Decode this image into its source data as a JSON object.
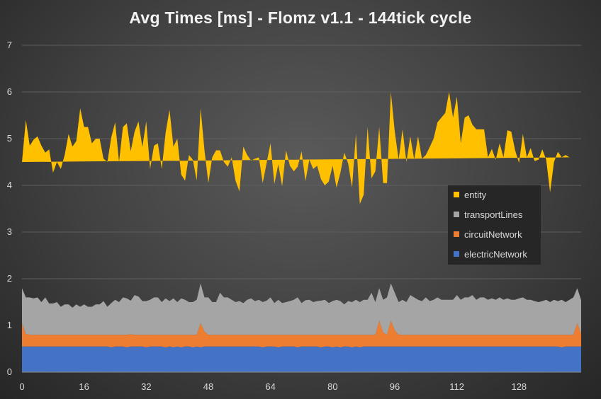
{
  "chart_data": {
    "type": "area",
    "stacked": true,
    "title": "Avg Times [ms] - Flomz v1.1 - 144tick cycle",
    "xlabel": "",
    "ylabel": "",
    "xlim": [
      0,
      144
    ],
    "ylim": [
      0,
      7
    ],
    "x_ticks": [
      "0",
      "16",
      "32",
      "48",
      "64",
      "80",
      "96",
      "112",
      "128"
    ],
    "y_ticks": [
      "0",
      "1",
      "2",
      "3",
      "4",
      "5",
      "6",
      "7"
    ],
    "grid": "horizontal",
    "legend_position": "right",
    "series": [
      {
        "name": "electricNetwork",
        "color": "#4472c4",
        "values": [
          0.55,
          0.55,
          0.55,
          0.55,
          0.55,
          0.55,
          0.55,
          0.55,
          0.55,
          0.55,
          0.55,
          0.55,
          0.55,
          0.55,
          0.55,
          0.55,
          0.55,
          0.55,
          0.55,
          0.55,
          0.55,
          0.55,
          0.55,
          0.53,
          0.55,
          0.55,
          0.55,
          0.53,
          0.55,
          0.55,
          0.55,
          0.55,
          0.53,
          0.55,
          0.55,
          0.55,
          0.55,
          0.53,
          0.55,
          0.53,
          0.55,
          0.53,
          0.55,
          0.55,
          0.53,
          0.55,
          0.53,
          0.55,
          0.55,
          0.55,
          0.55,
          0.55,
          0.55,
          0.55,
          0.55,
          0.55,
          0.55,
          0.55,
          0.55,
          0.55,
          0.55,
          0.55,
          0.53,
          0.55,
          0.55,
          0.55,
          0.53,
          0.55,
          0.55,
          0.55,
          0.55,
          0.53,
          0.55,
          0.55,
          0.55,
          0.55,
          0.55,
          0.53,
          0.55,
          0.55,
          0.53,
          0.55,
          0.53,
          0.55,
          0.55,
          0.53,
          0.55,
          0.53,
          0.55,
          0.55,
          0.55,
          0.55,
          0.55,
          0.55,
          0.55,
          0.55,
          0.55,
          0.55,
          0.55,
          0.55,
          0.55,
          0.55,
          0.55,
          0.55,
          0.55,
          0.55,
          0.55,
          0.55,
          0.55,
          0.55,
          0.55,
          0.55,
          0.55,
          0.55,
          0.55,
          0.55,
          0.55,
          0.55,
          0.55,
          0.55,
          0.55,
          0.55,
          0.55,
          0.55,
          0.55,
          0.55,
          0.55,
          0.55,
          0.55,
          0.55,
          0.55,
          0.55,
          0.55,
          0.55,
          0.55,
          0.55,
          0.55,
          0.55,
          0.55,
          0.53,
          0.55,
          0.55,
          0.55,
          0.55,
          0.55
        ]
      },
      {
        "name": "circuitNetwork",
        "color": "#ed7d31",
        "values": [
          0.5,
          0.27,
          0.25,
          0.25,
          0.25,
          0.25,
          0.25,
          0.25,
          0.25,
          0.25,
          0.25,
          0.25,
          0.25,
          0.25,
          0.25,
          0.25,
          0.25,
          0.25,
          0.25,
          0.25,
          0.25,
          0.25,
          0.25,
          0.27,
          0.25,
          0.25,
          0.25,
          0.27,
          0.26,
          0.25,
          0.25,
          0.25,
          0.27,
          0.25,
          0.25,
          0.25,
          0.25,
          0.27,
          0.25,
          0.27,
          0.25,
          0.27,
          0.25,
          0.25,
          0.27,
          0.25,
          0.52,
          0.32,
          0.25,
          0.25,
          0.25,
          0.25,
          0.25,
          0.25,
          0.25,
          0.25,
          0.25,
          0.25,
          0.25,
          0.25,
          0.25,
          0.25,
          0.27,
          0.25,
          0.25,
          0.25,
          0.27,
          0.25,
          0.25,
          0.25,
          0.25,
          0.27,
          0.25,
          0.25,
          0.25,
          0.25,
          0.25,
          0.27,
          0.25,
          0.25,
          0.27,
          0.25,
          0.27,
          0.25,
          0.25,
          0.27,
          0.25,
          0.27,
          0.25,
          0.25,
          0.25,
          0.25,
          0.55,
          0.3,
          0.25,
          0.55,
          0.35,
          0.25,
          0.25,
          0.25,
          0.25,
          0.25,
          0.25,
          0.25,
          0.25,
          0.25,
          0.25,
          0.25,
          0.25,
          0.25,
          0.25,
          0.25,
          0.25,
          0.25,
          0.25,
          0.25,
          0.25,
          0.25,
          0.25,
          0.25,
          0.25,
          0.25,
          0.25,
          0.25,
          0.25,
          0.25,
          0.25,
          0.25,
          0.25,
          0.25,
          0.25,
          0.25,
          0.25,
          0.25,
          0.25,
          0.25,
          0.25,
          0.25,
          0.25,
          0.27,
          0.25,
          0.25,
          0.25,
          0.5,
          0.27
        ]
      },
      {
        "name": "transportLines",
        "color": "#a5a5a5",
        "values": [
          0.75,
          0.78,
          0.8,
          0.78,
          0.8,
          0.7,
          0.8,
          0.67,
          0.67,
          0.7,
          0.6,
          0.65,
          0.65,
          0.58,
          0.65,
          0.6,
          0.65,
          0.6,
          0.6,
          0.65,
          0.65,
          0.72,
          0.6,
          0.68,
          0.75,
          0.7,
          0.8,
          0.78,
          0.72,
          0.85,
          0.82,
          0.72,
          0.72,
          0.75,
          0.8,
          0.8,
          0.7,
          0.78,
          0.72,
          0.78,
          0.7,
          0.78,
          0.75,
          0.7,
          0.7,
          0.75,
          0.85,
          0.73,
          0.8,
          0.7,
          0.7,
          0.9,
          0.8,
          0.8,
          0.75,
          0.7,
          0.72,
          0.68,
          0.75,
          0.78,
          0.72,
          0.75,
          0.7,
          0.73,
          0.8,
          0.68,
          0.75,
          0.68,
          0.7,
          0.72,
          0.75,
          0.8,
          0.68,
          0.74,
          0.75,
          0.7,
          0.72,
          0.73,
          0.75,
          0.68,
          0.72,
          0.75,
          0.72,
          0.65,
          0.72,
          0.7,
          0.75,
          0.7,
          0.75,
          0.75,
          0.9,
          0.7,
          0.7,
          0.7,
          0.8,
          0.8,
          0.8,
          0.7,
          0.75,
          0.7,
          0.85,
          0.8,
          0.75,
          0.72,
          0.8,
          0.72,
          0.75,
          0.8,
          0.75,
          0.75,
          0.75,
          0.75,
          0.85,
          0.75,
          0.8,
          0.8,
          0.85,
          0.75,
          0.8,
          0.8,
          0.75,
          0.78,
          0.75,
          0.8,
          0.75,
          0.78,
          0.75,
          0.75,
          0.78,
          0.8,
          0.75,
          0.75,
          0.72,
          0.7,
          0.72,
          0.75,
          0.7,
          0.75,
          0.72,
          0.75,
          0.7,
          0.75,
          0.8,
          0.75,
          0.72
        ]
      },
      {
        "name": "entity",
        "color": "#ffc000",
        "values": [
          2.7,
          3.8,
          3.25,
          3.4,
          3.45,
          3.35,
          3.1,
          3.3,
          2.8,
          3.0,
          2.95,
          3.2,
          3.65,
          3.45,
          3.5,
          4.25,
          3.8,
          3.85,
          3.5,
          3.55,
          3.55,
          3.05,
          3.1,
          3.55,
          3.8,
          3.0,
          3.65,
          3.75,
          3.2,
          3.5,
          3.75,
          3.3,
          3.85,
          2.8,
          3.25,
          3.3,
          2.85,
          3.55,
          4.1,
          3.25,
          3.5,
          2.65,
          2.55,
          3.15,
          3.05,
          2.55,
          3.75,
          3.15,
          2.45,
          3.1,
          3.25,
          3.05,
          2.9,
          2.8,
          3.05,
          2.6,
          2.35,
          3.35,
          3.1,
          2.95,
          3.05,
          3.05,
          2.55,
          2.95,
          3.3,
          2.55,
          2.9,
          2.5,
          3.25,
          2.9,
          2.75,
          2.8,
          3.25,
          2.55,
          3.0,
          2.85,
          2.9,
          2.6,
          2.45,
          2.6,
          2.9,
          2.4,
          2.75,
          3.25,
          2.95,
          2.45,
          3.55,
          2.1,
          2.25,
          3.7,
          2.45,
          2.8,
          3.45,
          2.5,
          2.45,
          4.1,
          3.45,
          3.05,
          3.65,
          3.0,
          3.4,
          2.95,
          3.5,
          3.05,
          3.05,
          3.3,
          3.45,
          3.75,
          3.9,
          4.0,
          4.45,
          3.9,
          4.25,
          3.35,
          3.85,
          3.9,
          3.65,
          3.65,
          3.6,
          3.6,
          3.05,
          3.2,
          3.0,
          3.3,
          3.05,
          3.6,
          3.6,
          3.2,
          2.9,
          3.5,
          3.05,
          3.25,
          3.0,
          3.05,
          3.25,
          3.0,
          2.35,
          2.95,
          3.2,
          3.05,
          3.15,
          3.05
        ]
      }
    ]
  }
}
